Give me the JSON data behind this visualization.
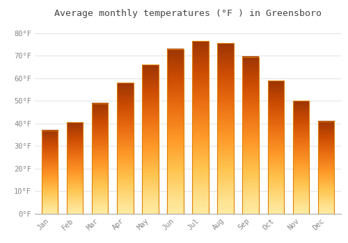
{
  "title": "Average monthly temperatures (°F ) in Greensboro",
  "months": [
    "Jan",
    "Feb",
    "Mar",
    "Apr",
    "May",
    "Jun",
    "Jul",
    "Aug",
    "Sep",
    "Oct",
    "Nov",
    "Dec"
  ],
  "values": [
    37,
    40.5,
    49,
    58,
    66,
    73,
    76.5,
    75.5,
    69.5,
    59,
    50,
    41
  ],
  "bar_color_top": "#FFCA28",
  "bar_color_mid": "#FFA000",
  "bar_color_bottom": "#FFB300",
  "bar_edge_color": "#E08000",
  "background_color": "#FFFFFF",
  "plot_bg_color": "#FFFFFF",
  "grid_color": "#DDDDDD",
  "ylim": [
    0,
    85
  ],
  "yticks": [
    0,
    10,
    20,
    30,
    40,
    50,
    60,
    70,
    80
  ],
  "title_fontsize": 9.5,
  "tick_fontsize": 7.5,
  "tick_color": "#888888",
  "title_color": "#444444",
  "bar_width": 0.65
}
